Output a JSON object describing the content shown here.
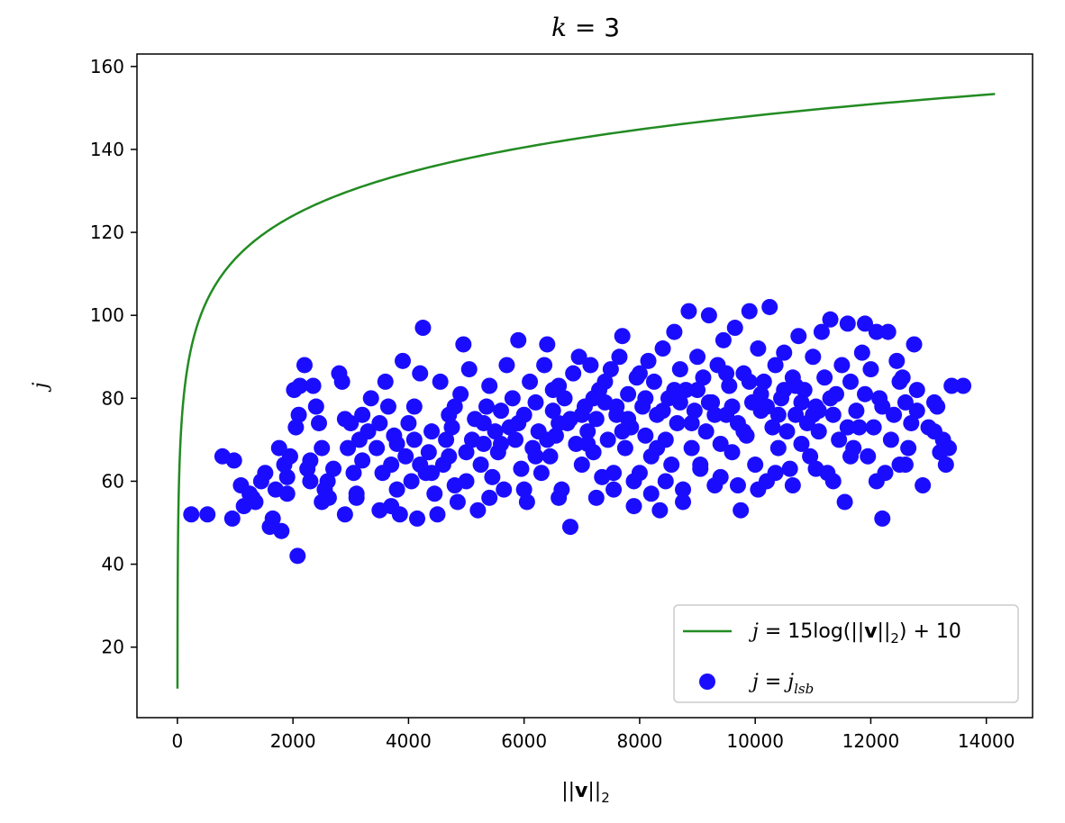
{
  "chart_data": {
    "type": "scatter",
    "title": {
      "var": "k",
      "eq": " = ",
      "val": "3"
    },
    "xlabel": {
      "pre": "||",
      "v": "v",
      "post": "||",
      "sub": "2"
    },
    "ylabel": "j",
    "xlim": [
      -700,
      14800
    ],
    "ylim": [
      3,
      163
    ],
    "xticks": [
      0,
      2000,
      4000,
      6000,
      8000,
      10000,
      12000,
      14000
    ],
    "yticks": [
      20,
      40,
      60,
      80,
      100,
      120,
      140,
      160
    ],
    "legend_position": "lower-right",
    "colors": {
      "line": "#228B22",
      "points": "#1a0dff"
    },
    "line_series": {
      "legend": {
        "lhs": "j",
        "eq": " = 15log(||",
        "v": "v",
        "rhs": "||",
        "sub": "2",
        "tail": ") + 10"
      },
      "equation": {
        "a": 15,
        "b": 10,
        "base": "e"
      },
      "x_range": [
        1,
        14150
      ]
    },
    "scatter_series": {
      "legend": {
        "lhs": "j",
        "eq": " = ",
        "rhs": "j",
        "sub": "lsb"
      },
      "points": [
        [
          240,
          52
        ],
        [
          520,
          52
        ],
        [
          780,
          66
        ],
        [
          950,
          51
        ],
        [
          980,
          65
        ],
        [
          1100,
          59
        ],
        [
          1150,
          54
        ],
        [
          1250,
          57
        ],
        [
          1350,
          55
        ],
        [
          1450,
          60
        ],
        [
          1520,
          62
        ],
        [
          1600,
          49
        ],
        [
          1650,
          51
        ],
        [
          1700,
          58
        ],
        [
          1760,
          68
        ],
        [
          1800,
          48
        ],
        [
          1850,
          64
        ],
        [
          1900,
          57
        ],
        [
          1950,
          66
        ],
        [
          2080,
          42
        ],
        [
          2050,
          73
        ],
        [
          2100,
          76
        ],
        [
          2120,
          83
        ],
        [
          2200,
          88
        ],
        [
          2250,
          63
        ],
        [
          2300,
          60
        ],
        [
          2350,
          83
        ],
        [
          2400,
          78
        ],
        [
          2450,
          74
        ],
        [
          2500,
          68
        ],
        [
          2550,
          58
        ],
        [
          2620,
          56
        ],
        [
          2700,
          63
        ],
        [
          2800,
          86
        ],
        [
          2850,
          84
        ],
        [
          2900,
          52
        ],
        [
          2950,
          68
        ],
        [
          3000,
          74
        ],
        [
          3050,
          62
        ],
        [
          3100,
          57
        ],
        [
          3150,
          70
        ],
        [
          3200,
          76
        ],
        [
          3300,
          72
        ],
        [
          3350,
          80
        ],
        [
          3450,
          68
        ],
        [
          3500,
          53
        ],
        [
          3550,
          62
        ],
        [
          3600,
          84
        ],
        [
          3650,
          78
        ],
        [
          3700,
          64
        ],
        [
          3750,
          71
        ],
        [
          3800,
          58
        ],
        [
          3850,
          52
        ],
        [
          3900,
          89
        ],
        [
          3950,
          66
        ],
        [
          4000,
          74
        ],
        [
          4050,
          60
        ],
        [
          4100,
          78
        ],
        [
          4150,
          51
        ],
        [
          4200,
          86
        ],
        [
          4250,
          97
        ],
        [
          4300,
          62
        ],
        [
          4350,
          67
        ],
        [
          4400,
          72
        ],
        [
          4450,
          57
        ],
        [
          4500,
          52
        ],
        [
          4550,
          84
        ],
        [
          4600,
          64
        ],
        [
          4650,
          70
        ],
        [
          4700,
          66
        ],
        [
          4750,
          73
        ],
        [
          4800,
          78
        ],
        [
          4850,
          55
        ],
        [
          4900,
          81
        ],
        [
          4950,
          93
        ],
        [
          5000,
          60
        ],
        [
          5050,
          87
        ],
        [
          5100,
          70
        ],
        [
          5150,
          75
        ],
        [
          5200,
          53
        ],
        [
          5250,
          64
        ],
        [
          5300,
          69
        ],
        [
          5350,
          78
        ],
        [
          5400,
          83
        ],
        [
          5450,
          61
        ],
        [
          5500,
          72
        ],
        [
          5550,
          67
        ],
        [
          5600,
          77
        ],
        [
          5650,
          58
        ],
        [
          5700,
          88
        ],
        [
          5750,
          73
        ],
        [
          5800,
          80
        ],
        [
          5850,
          70
        ],
        [
          5900,
          94
        ],
        [
          5950,
          63
        ],
        [
          6000,
          76
        ],
        [
          6050,
          55
        ],
        [
          6100,
          84
        ],
        [
          6150,
          68
        ],
        [
          6200,
          79
        ],
        [
          6250,
          72
        ],
        [
          6300,
          62
        ],
        [
          6350,
          88
        ],
        [
          6400,
          93
        ],
        [
          6450,
          66
        ],
        [
          6500,
          77
        ],
        [
          6550,
          71
        ],
        [
          6600,
          83
        ],
        [
          6650,
          58
        ],
        [
          6700,
          80
        ],
        [
          6750,
          74
        ],
        [
          6800,
          49
        ],
        [
          6850,
          86
        ],
        [
          6900,
          69
        ],
        [
          6950,
          90
        ],
        [
          7000,
          64
        ],
        [
          7050,
          78
        ],
        [
          7100,
          72
        ],
        [
          7150,
          88
        ],
        [
          7200,
          67
        ],
        [
          7250,
          75
        ],
        [
          7300,
          82
        ],
        [
          7350,
          61
        ],
        [
          7400,
          79
        ],
        [
          7450,
          70
        ],
        [
          7500,
          87
        ],
        [
          7550,
          58
        ],
        [
          7600,
          76
        ],
        [
          7650,
          90
        ],
        [
          7700,
          95
        ],
        [
          7750,
          68
        ],
        [
          7800,
          81
        ],
        [
          7850,
          73
        ],
        [
          7900,
          54
        ],
        [
          7950,
          85
        ],
        [
          8000,
          62
        ],
        [
          8050,
          78
        ],
        [
          8100,
          71
        ],
        [
          8150,
          89
        ],
        [
          8200,
          66
        ],
        [
          8250,
          84
        ],
        [
          8300,
          76
        ],
        [
          8350,
          53
        ],
        [
          8400,
          92
        ],
        [
          8450,
          70
        ],
        [
          8500,
          80
        ],
        [
          8550,
          64
        ],
        [
          8600,
          96
        ],
        [
          8650,
          74
        ],
        [
          8700,
          87
        ],
        [
          8750,
          58
        ],
        [
          8800,
          82
        ],
        [
          8850,
          101
        ],
        [
          8900,
          68
        ],
        [
          8950,
          77
        ],
        [
          9000,
          90
        ],
        [
          9050,
          63
        ],
        [
          9100,
          85
        ],
        [
          9150,
          72
        ],
        [
          9200,
          100
        ],
        [
          9250,
          79
        ],
        [
          9300,
          59
        ],
        [
          9350,
          88
        ],
        [
          9400,
          69
        ],
        [
          9450,
          94
        ],
        [
          9500,
          76
        ],
        [
          9550,
          83
        ],
        [
          9600,
          67
        ],
        [
          9650,
          97
        ],
        [
          9700,
          74
        ],
        [
          9750,
          53
        ],
        [
          9800,
          86
        ],
        [
          9850,
          71
        ],
        [
          9900,
          101
        ],
        [
          9950,
          79
        ],
        [
          10000,
          64
        ],
        [
          10050,
          92
        ],
        [
          10100,
          77
        ],
        [
          10150,
          84
        ],
        [
          10200,
          60
        ],
        [
          10250,
          102
        ],
        [
          10300,
          73
        ],
        [
          10350,
          88
        ],
        [
          10400,
          68
        ],
        [
          10450,
          80
        ],
        [
          10500,
          91
        ],
        [
          10550,
          72
        ],
        [
          10600,
          63
        ],
        [
          10650,
          85
        ],
        [
          10700,
          76
        ],
        [
          10750,
          95
        ],
        [
          10800,
          69
        ],
        [
          10850,
          82
        ],
        [
          10900,
          74
        ],
        [
          10950,
          66
        ],
        [
          11000,
          90
        ],
        [
          11050,
          78
        ],
        [
          11100,
          72
        ],
        [
          11150,
          96
        ],
        [
          11200,
          85
        ],
        [
          11250,
          62
        ],
        [
          11300,
          99
        ],
        [
          11350,
          76
        ],
        [
          11400,
          81
        ],
        [
          11450,
          70
        ],
        [
          11500,
          88
        ],
        [
          11550,
          55
        ],
        [
          11600,
          98
        ],
        [
          11650,
          84
        ],
        [
          11700,
          68
        ],
        [
          11750,
          77
        ],
        [
          11800,
          73
        ],
        [
          11850,
          91
        ],
        [
          11900,
          98
        ],
        [
          11950,
          66
        ],
        [
          12000,
          87
        ],
        [
          12050,
          73
        ],
        [
          12100,
          96
        ],
        [
          12150,
          80
        ],
        [
          12200,
          51
        ],
        [
          12250,
          62
        ],
        [
          12300,
          96
        ],
        [
          12350,
          70
        ],
        [
          12400,
          76
        ],
        [
          12450,
          89
        ],
        [
          12500,
          64
        ],
        [
          12550,
          85
        ],
        [
          12600,
          79
        ],
        [
          12650,
          68
        ],
        [
          12700,
          74
        ],
        [
          12750,
          93
        ],
        [
          12800,
          82
        ],
        [
          12900,
          59
        ],
        [
          13000,
          73
        ],
        [
          13100,
          79
        ],
        [
          13150,
          78
        ],
        [
          13200,
          67
        ],
        [
          13250,
          70
        ],
        [
          13300,
          64
        ],
        [
          13350,
          68
        ],
        [
          13400,
          83
        ],
        [
          13600,
          83
        ],
        [
          2020,
          82
        ],
        [
          2300,
          65
        ],
        [
          2600,
          60
        ],
        [
          2900,
          75
        ],
        [
          3200,
          65
        ],
        [
          3500,
          74
        ],
        [
          3800,
          69
        ],
        [
          4100,
          70
        ],
        [
          4400,
          62
        ],
        [
          4700,
          76
        ],
        [
          5000,
          67
        ],
        [
          5300,
          74
        ],
        [
          5600,
          69
        ],
        [
          5900,
          74
        ],
        [
          6200,
          66
        ],
        [
          6500,
          82
        ],
        [
          6800,
          75
        ],
        [
          7100,
          69
        ],
        [
          7400,
          84
        ],
        [
          7700,
          72
        ],
        [
          8000,
          86
        ],
        [
          8300,
          68
        ],
        [
          8600,
          82
        ],
        [
          8900,
          74
        ],
        [
          9200,
          79
        ],
        [
          9500,
          86
        ],
        [
          9800,
          72
        ],
        [
          10100,
          81
        ],
        [
          10400,
          76
        ],
        [
          10700,
          83
        ],
        [
          11000,
          76
        ],
        [
          11300,
          80
        ],
        [
          11600,
          73
        ],
        [
          11900,
          81
        ],
        [
          12200,
          78
        ],
        [
          12500,
          84
        ],
        [
          12800,
          77
        ],
        [
          13100,
          72
        ],
        [
          6400,
          70
        ],
        [
          6600,
          74
        ],
        [
          7000,
          76
        ],
        [
          7200,
          80
        ],
        [
          7600,
          78
        ],
        [
          7800,
          75
        ],
        [
          8100,
          80
        ],
        [
          8400,
          77
        ],
        [
          8700,
          79
        ],
        [
          9000,
          82
        ],
        [
          9300,
          76
        ],
        [
          9600,
          78
        ],
        [
          9900,
          84
        ],
        [
          10200,
          78
        ],
        [
          10500,
          82
        ],
        [
          10800,
          79
        ],
        [
          11100,
          77
        ],
        [
          7250,
          56
        ],
        [
          7550,
          62
        ],
        [
          7900,
          60
        ],
        [
          8200,
          57
        ],
        [
          8450,
          60
        ],
        [
          8750,
          55
        ],
        [
          9050,
          64
        ],
        [
          9400,
          61
        ],
        [
          9700,
          59
        ],
        [
          10050,
          58
        ],
        [
          10350,
          62
        ],
        [
          10650,
          59
        ],
        [
          11050,
          63
        ],
        [
          11350,
          60
        ],
        [
          11650,
          66
        ],
        [
          12100,
          60
        ],
        [
          12600,
          64
        ],
        [
          1300,
          56
        ],
        [
          1900,
          61
        ],
        [
          2500,
          55
        ],
        [
          3100,
          56
        ],
        [
          3700,
          54
        ],
        [
          4200,
          64
        ],
        [
          4800,
          59
        ],
        [
          5400,
          56
        ],
        [
          6000,
          58
        ],
        [
          6600,
          56
        ]
      ]
    }
  }
}
